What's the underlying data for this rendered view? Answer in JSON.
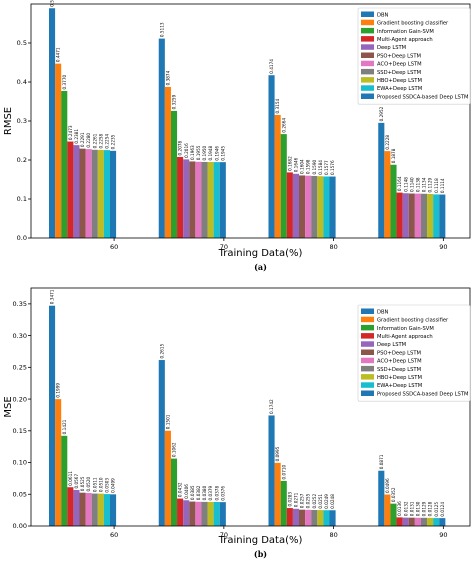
{
  "colors": [
    "#1f77b4",
    "#ff7f0e",
    "#2ca02c",
    "#d62728",
    "#9467bd",
    "#8c564b",
    "#e377c2",
    "#7f7f7f",
    "#bcbd22",
    "#17becf",
    "#1f77b4"
  ],
  "chart_data": [
    {
      "type": "bar",
      "panel_label": "(a)",
      "xlabel": "Training Data(%)",
      "ylabel": "RMSE",
      "ylim": [
        0,
        0.6
      ],
      "yticks": [
        "0.0",
        "0.1",
        "0.2",
        "0.3",
        "0.4",
        "0.5"
      ],
      "categories": [
        "60",
        "70",
        "80",
        "90"
      ],
      "legend_position": "top-right",
      "grid": false,
      "series": [
        {
          "name": "DBN",
          "values": [
            0.5891,
            0.5113,
            0.4174,
            0.2952
          ],
          "labels": [
            "0.5891",
            "0.5113",
            "0.4174",
            "0.2952"
          ]
        },
        {
          "name": "Gradient boosting classifier",
          "values": [
            0.4471,
            0.3874,
            0.3154,
            0.2228
          ],
          "labels": [
            "0.4471",
            "0.3874",
            "0.3154",
            "0.2228"
          ]
        },
        {
          "name": "Information Gain-SVM",
          "values": [
            0.377,
            0.3259,
            0.2664,
            0.1878
          ],
          "labels": [
            "0.3770",
            "0.3259",
            "0.2664",
            "0.1878"
          ]
        },
        {
          "name": "Multi-Agent approach",
          "values": [
            0.2473,
            0.2078,
            0.1682,
            0.1164
          ],
          "labels": [
            "0.2473",
            "0.2078",
            "0.1682",
            "0.1164"
          ]
        },
        {
          "name": "Deep LSTM",
          "values": [
            0.2381,
            0.2016,
            0.1646,
            0.1148
          ],
          "labels": [
            "0.2381",
            "0.2016",
            "0.1646",
            "0.1148"
          ]
        },
        {
          "name": "PSO+Deep LSTM",
          "values": [
            0.2291,
            0.1963,
            0.1604,
            0.114
          ],
          "labels": [
            "0.2291",
            "0.1963",
            "0.1604",
            "0.1140"
          ]
        },
        {
          "name": "ACO+Deep LSTM",
          "values": [
            0.228,
            0.1955,
            0.1598,
            0.1138
          ],
          "labels": [
            "0.2280",
            "0.1955",
            "0.1598",
            "0.1138"
          ]
        },
        {
          "name": "SSD+Deep LSTM",
          "values": [
            0.2261,
            0.195,
            0.159,
            0.1134
          ],
          "labels": [
            "0.2261",
            "0.1950",
            "0.1590",
            "0.1134"
          ]
        },
        {
          "name": "HBO+Deep LSTM",
          "values": [
            0.2258,
            0.1948,
            0.1584,
            0.1129
          ],
          "labels": [
            "0.2258",
            "0.1948",
            "0.1584",
            "0.1129"
          ]
        },
        {
          "name": "EWA+Deep LSTM",
          "values": [
            0.2254,
            0.1946,
            0.1577,
            0.1118
          ],
          "labels": [
            "0.2254",
            "0.1946",
            "0.1577",
            "0.1118"
          ]
        },
        {
          "name": "Proposed SSDCA-based Deep LSTM",
          "values": [
            0.2235,
            0.1945,
            0.1576,
            0.1114
          ],
          "labels": [
            "0.2235",
            "0.1945",
            "0.1576",
            "0.1114"
          ]
        }
      ]
    },
    {
      "type": "bar",
      "panel_label": "(b)",
      "xlabel": "Training Data(%)",
      "ylabel": "MSE",
      "ylim": [
        0,
        0.375
      ],
      "yticks": [
        "0.00",
        "0.05",
        "0.10",
        "0.15",
        "0.20",
        "0.25",
        "0.30",
        "0.35"
      ],
      "categories": [
        "60",
        "70",
        "80",
        "90"
      ],
      "legend_position": "top-right",
      "grid": false,
      "series": [
        {
          "name": "DBN",
          "values": [
            0.3471,
            0.2615,
            0.1742,
            0.0871
          ],
          "labels": [
            "0.3471",
            "0.2615",
            "0.1742",
            "0.0871"
          ]
        },
        {
          "name": "Gradient boosting classifier",
          "values": [
            0.1999,
            0.1501,
            0.0995,
            0.0496
          ],
          "labels": [
            "0.1999",
            "0.1501",
            "0.0995",
            "0.0496"
          ]
        },
        {
          "name": "Information Gain-SVM",
          "values": [
            0.1421,
            0.1062,
            0.071,
            0.0352
          ],
          "labels": [
            "0.1421",
            "0.1062",
            "0.0710",
            "0.0352"
          ]
        },
        {
          "name": "Multi-Agent approach",
          "values": [
            0.0611,
            0.0432,
            0.0283,
            0.0136
          ],
          "labels": [
            "0.0611",
            "0.0432",
            "0.0283",
            "0.0136"
          ]
        },
        {
          "name": "Deep LSTM",
          "values": [
            0.0567,
            0.0406,
            0.0271,
            0.0132
          ],
          "labels": [
            "0.0567",
            "0.0406",
            "0.0271",
            "0.0132"
          ]
        },
        {
          "name": "PSO+Deep LSTM",
          "values": [
            0.0525,
            0.0385,
            0.0257,
            0.0131
          ],
          "labels": [
            "0.0525",
            "0.0385",
            "0.0257",
            "0.0131"
          ]
        },
        {
          "name": "ACO+Deep LSTM",
          "values": [
            0.052,
            0.0382,
            0.0255,
            0.013
          ],
          "labels": [
            "0.0520",
            "0.0382",
            "0.0255",
            "0.0130"
          ]
        },
        {
          "name": "SSD+Deep LSTM",
          "values": [
            0.0511,
            0.038,
            0.0252,
            0.0129
          ],
          "labels": [
            "0.0511",
            "0.0380",
            "0.0252",
            "0.0129"
          ]
        },
        {
          "name": "HBO+Deep LSTM",
          "values": [
            0.051,
            0.0379,
            0.0251,
            0.0128
          ],
          "labels": [
            "0.0510",
            "0.0379",
            "0.0251",
            "0.0128"
          ]
        },
        {
          "name": "EWA+Deep LSTM",
          "values": [
            0.0503,
            0.0378,
            0.0249,
            0.0125
          ],
          "labels": [
            "0.0503",
            "0.0378",
            "0.0249",
            "0.0125"
          ]
        },
        {
          "name": "Proposed SSDCA-based Deep LSTM",
          "values": [
            0.0499,
            0.0376,
            0.0248,
            0.0124
          ],
          "labels": [
            "0.0499",
            "0.0376",
            "0.0248",
            "0.0124"
          ]
        }
      ]
    }
  ]
}
